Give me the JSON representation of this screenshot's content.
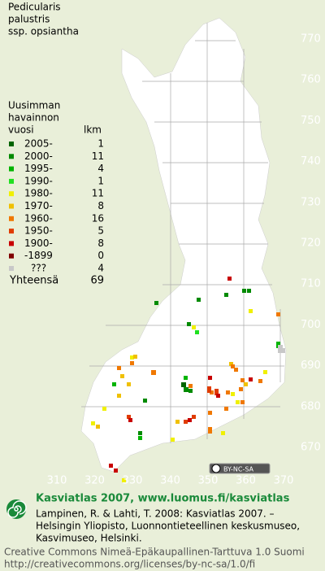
{
  "title": [
    "Pedicularis",
    "palustris",
    "ssp. opsiantha"
  ],
  "legend": {
    "header": [
      "Uusimman",
      "havainnon",
      "vuosi"
    ],
    "count_header": "lkm",
    "rows": [
      {
        "label": "2005-",
        "count": 1,
        "color": "#006400"
      },
      {
        "label": "2000-",
        "count": 11,
        "color": "#008a00"
      },
      {
        "label": "1995-",
        "count": 4,
        "color": "#00b400"
      },
      {
        "label": "1990-",
        "count": 1,
        "color": "#20e020"
      },
      {
        "label": "1980-",
        "count": 11,
        "color": "#f0f000"
      },
      {
        "label": "1970-",
        "count": 8,
        "color": "#f0c000"
      },
      {
        "label": "1960-",
        "count": 16,
        "color": "#f07800"
      },
      {
        "label": "1950-",
        "count": 5,
        "color": "#e03c00"
      },
      {
        "label": "1900-",
        "count": 8,
        "color": "#c80000"
      },
      {
        "label": "-1899",
        "count": 0,
        "color": "#800000"
      },
      {
        "label": "???",
        "count": 4,
        "color": "#c8c8c8"
      }
    ],
    "total_label": "Yhteensä",
    "total": 69
  },
  "grid": {
    "north": [
      "770",
      "760",
      "750",
      "740",
      "730",
      "720",
      "710",
      "700",
      "690",
      "680",
      "670"
    ],
    "east": [
      "310",
      "320",
      "330",
      "340",
      "350",
      "360",
      "370"
    ]
  },
  "license_badge": "BY-NC-SA",
  "footer": {
    "site": "Kasviatlas 2007, www.luomus.fi/kasviatlas",
    "citation": [
      "Lampinen, R. & Lahti, T. 2008: Kasviatlas 2007. –",
      "Helsingin Yliopisto, Luonnontieteellinen keskusmuseo,",
      "Kasvimuseo, Helsinki."
    ],
    "license": [
      "Creative Commons Nimeä-Epäkaupallinen-Tarttuva 1.0 Suomi",
      "http://creativecommons.org/licenses/by-nc-sa/1.0/fi"
    ]
  }
}
